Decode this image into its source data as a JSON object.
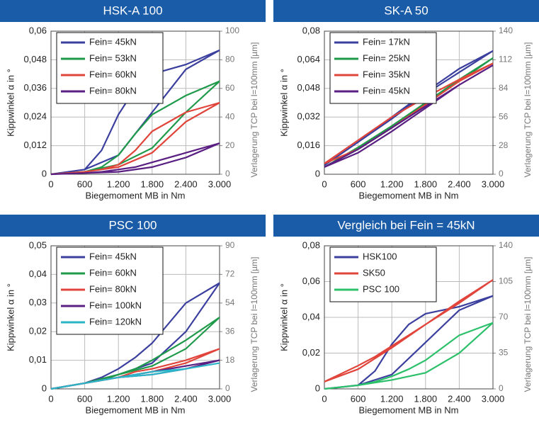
{
  "chart_data": [
    {
      "type": "line",
      "title": "HSK-A 100",
      "y_label": "Kippwinkel α in °",
      "y2_label": "Verlagerung TCP bei l=100mm [µm]",
      "x_label": "Biegemoment MB in Nm",
      "x": [
        0,
        600,
        900,
        1200,
        1500,
        1800,
        2400,
        3000,
        2400,
        1800,
        1200,
        600,
        0
      ],
      "xlim": [
        0,
        3000
      ],
      "xticks": [
        0,
        600,
        {
          "value": 1200,
          "label": "1.200"
        },
        {
          "value": 1800,
          "label": "1.800"
        },
        {
          "value": 2400,
          "label": "2.400"
        },
        {
          "value": 3000,
          "label": "3.000"
        }
      ],
      "ylim": [
        0,
        0.06
      ],
      "yticks": [
        0,
        {
          "value": 0.012,
          "label": "0,012"
        },
        {
          "value": 0.024,
          "label": "0,024"
        },
        {
          "value": 0.036,
          "label": "0,036"
        },
        {
          "value": 0.048,
          "label": "0,048"
        },
        {
          "value": 0.06,
          "label": "0,06"
        }
      ],
      "y2lim": [
        0,
        100
      ],
      "y2ticks": [
        0,
        20,
        40,
        60,
        80,
        100
      ],
      "grid": true,
      "legend": "upper left",
      "series": [
        {
          "name": "Fein= 45kN",
          "color": "#3b3f9e",
          "values": [
            0,
            0.002,
            0.01,
            0.025,
            0.036,
            0.042,
            0.046,
            0.052,
            0.044,
            0.026,
            0.008,
            0.002,
            0
          ]
        },
        {
          "name": "Fein= 53kN",
          "color": "#1f9a4a",
          "values": [
            0,
            0.001,
            0.003,
            0.008,
            0.017,
            0.025,
            0.033,
            0.039,
            0.026,
            0.011,
            0.004,
            0.001,
            0
          ]
        },
        {
          "name": "Fein= 60kN",
          "color": "#e0443a",
          "values": [
            0,
            0.001,
            0.002,
            0.004,
            0.01,
            0.018,
            0.026,
            0.03,
            0.022,
            0.009,
            0.003,
            0.001,
            0
          ]
        },
        {
          "name": "Fein= 80kN",
          "color": "#5a1f82",
          "values": [
            0,
            0.0005,
            0.001,
            0.002,
            0.003,
            0.005,
            0.009,
            0.013,
            0.007,
            0.003,
            0.001,
            0.0005,
            0
          ]
        }
      ]
    },
    {
      "type": "line",
      "title": "SK-A 50",
      "y_label": "Kippwinkel α in °",
      "y2_label": "Verlagerung TCP bei l=100mm [µm]",
      "x_label": "Biegemoment MB in Nm",
      "x": [
        0,
        600,
        1200,
        1800,
        2400,
        3000,
        2400,
        1800,
        1200,
        600,
        0
      ],
      "xlim": [
        0,
        3000
      ],
      "xticks": [
        0,
        600,
        {
          "value": 1200,
          "label": "1.200"
        },
        {
          "value": 1800,
          "label": "1.800"
        },
        {
          "value": 2400,
          "label": "2.400"
        },
        {
          "value": 3000,
          "label": "3.000"
        }
      ],
      "ylim": [
        0,
        0.08
      ],
      "yticks": [
        0,
        {
          "value": 0.016,
          "label": "0,016"
        },
        {
          "value": 0.032,
          "label": "0,032"
        },
        {
          "value": 0.048,
          "label": "0,048"
        },
        {
          "value": 0.064,
          "label": "0,064"
        },
        {
          "value": 0.08,
          "label": "0,08"
        }
      ],
      "y2lim": [
        0,
        140
      ],
      "y2ticks": [
        0,
        28,
        56,
        84,
        112,
        140
      ],
      "grid": true,
      "legend": "upper left",
      "series": [
        {
          "name": "Fein= 17kN",
          "color": "#3b3f9e",
          "values": [
            0.005,
            0.018,
            0.031,
            0.045,
            0.057,
            0.069,
            0.059,
            0.046,
            0.032,
            0.018,
            0.005
          ]
        },
        {
          "name": "Fein= 25kN",
          "color": "#1f9a4a",
          "values": [
            0.004,
            0.015,
            0.027,
            0.04,
            0.052,
            0.065,
            0.053,
            0.04,
            0.026,
            0.014,
            0.004
          ]
        },
        {
          "name": "Fein= 35kN",
          "color": "#e0443a",
          "values": [
            0.006,
            0.019,
            0.032,
            0.043,
            0.053,
            0.062,
            0.052,
            0.039,
            0.026,
            0.014,
            0.006
          ]
        },
        {
          "name": "Fein= 45kN",
          "color": "#5a1f82",
          "values": [
            0.004,
            0.014,
            0.026,
            0.038,
            0.05,
            0.061,
            0.05,
            0.037,
            0.024,
            0.012,
            0.004
          ]
        }
      ]
    },
    {
      "type": "line",
      "title": "PSC 100",
      "y_label": "Kippwinkel α in °",
      "y2_label": "Verlagerung TCP bei l=100mm [µm]",
      "x_label": "Biegemoment MB in Nm",
      "x": [
        0,
        600,
        900,
        1200,
        1500,
        1800,
        2400,
        3000,
        2400,
        1800,
        1200,
        600,
        0
      ],
      "xlim": [
        0,
        3000
      ],
      "xticks": [
        0,
        600,
        {
          "value": 1200,
          "label": "1.200"
        },
        {
          "value": 1800,
          "label": "1.800"
        },
        {
          "value": 2400,
          "label": "2.400"
        },
        {
          "value": 3000,
          "label": "3.000"
        }
      ],
      "ylim": [
        0,
        0.05
      ],
      "yticks": [
        0,
        {
          "value": 0.01,
          "label": "0,01"
        },
        {
          "value": 0.02,
          "label": "0,02"
        },
        {
          "value": 0.03,
          "label": "0,03"
        },
        {
          "value": 0.04,
          "label": "0,04"
        },
        {
          "value": 0.05,
          "label": "0,05"
        }
      ],
      "y2lim": [
        0,
        90
      ],
      "y2ticks": [
        0,
        18,
        36,
        54,
        72,
        90
      ],
      "grid": true,
      "legend": "upper left",
      "series": [
        {
          "name": "Fein= 45kN",
          "color": "#3b3f9e",
          "values": [
            0,
            0.002,
            0.004,
            0.007,
            0.011,
            0.016,
            0.03,
            0.037,
            0.02,
            0.009,
            0.005,
            0.002,
            0
          ]
        },
        {
          "name": "Fein= 60kN",
          "color": "#1f9a4a",
          "values": [
            0,
            0.002,
            0.003,
            0.005,
            0.007,
            0.01,
            0.017,
            0.025,
            0.014,
            0.008,
            0.005,
            0.002,
            0
          ]
        },
        {
          "name": "Fein= 80kN",
          "color": "#e0443a",
          "values": [
            0,
            0.002,
            0.003,
            0.004,
            0.006,
            0.007,
            0.01,
            0.014,
            0.009,
            0.006,
            0.004,
            0.002,
            0
          ]
        },
        {
          "name": "Fein= 100kN",
          "color": "#5a1f82",
          "values": [
            0,
            0.002,
            0.003,
            0.004,
            0.005,
            0.006,
            0.008,
            0.01,
            0.007,
            0.005,
            0.004,
            0.002,
            0
          ]
        },
        {
          "name": "Fein= 120kN",
          "color": "#2bb5c8",
          "values": [
            0,
            0.002,
            0.003,
            0.004,
            0.005,
            0.006,
            0.007,
            0.009,
            0.007,
            0.005,
            0.004,
            0.002,
            0
          ]
        }
      ]
    },
    {
      "type": "line",
      "title": "Vergleich bei Fein = 45kN",
      "y_label": "Kippwinkel α in °",
      "y2_label": "Verlagerung TCP bei l=100mm [µm]",
      "x_label": "Biegemoment MB in Nm",
      "x": [
        0,
        600,
        900,
        1200,
        1500,
        1800,
        2400,
        3000,
        2400,
        1800,
        1200,
        600,
        0
      ],
      "xlim": [
        0,
        3000
      ],
      "xticks": [
        0,
        600,
        {
          "value": 1200,
          "label": "1.200"
        },
        {
          "value": 1800,
          "label": "1.800"
        },
        {
          "value": 2400,
          "label": "2.400"
        },
        {
          "value": 3000,
          "label": "3.000"
        }
      ],
      "ylim": [
        0,
        0.08
      ],
      "yticks": [
        0,
        {
          "value": 0.02,
          "label": "0,02"
        },
        {
          "value": 0.04,
          "label": "0,04"
        },
        {
          "value": 0.06,
          "label": "0,06"
        },
        {
          "value": 0.08,
          "label": "0,08"
        }
      ],
      "y2lim": [
        0,
        140
      ],
      "y2ticks": [
        0,
        35,
        70,
        105,
        140
      ],
      "grid": true,
      "legend": "upper left",
      "series": [
        {
          "name": "HSK100",
          "color": "#3b3f9e",
          "values": [
            0,
            0.002,
            0.01,
            0.025,
            0.036,
            0.042,
            0.046,
            0.052,
            0.044,
            0.026,
            0.008,
            0.002,
            0
          ]
        },
        {
          "name": "SK50",
          "color": "#e0443a",
          "values": [
            0.004,
            0.013,
            0.018,
            0.024,
            0.03,
            0.036,
            0.048,
            0.061,
            0.049,
            0.036,
            0.023,
            0.011,
            0.004
          ]
        },
        {
          "name": "PSC 100",
          "color": "#2cc06a",
          "values": [
            0,
            0.002,
            0.004,
            0.007,
            0.011,
            0.016,
            0.03,
            0.037,
            0.02,
            0.009,
            0.005,
            0.002,
            0
          ]
        }
      ]
    }
  ]
}
